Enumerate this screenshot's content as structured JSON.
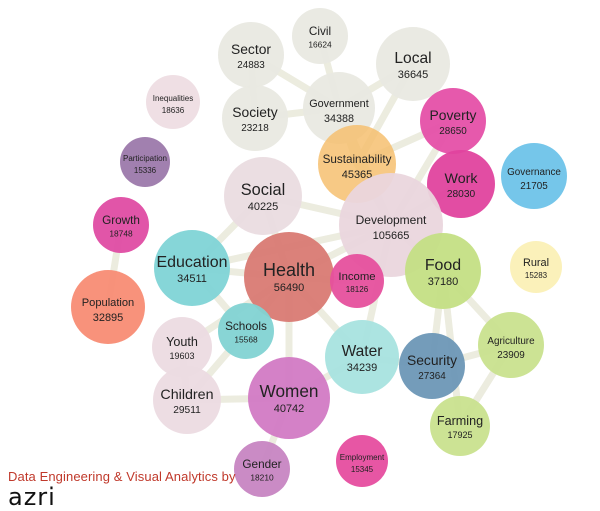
{
  "nodes": [
    {
      "id": "sector",
      "label": "Sector",
      "count": "24883",
      "color": "#e9e9e1"
    },
    {
      "id": "civil",
      "label": "Civil",
      "count": "16624",
      "color": "#e9e9e1"
    },
    {
      "id": "local",
      "label": "Local",
      "count": "36645",
      "color": "#e9e9e1"
    },
    {
      "id": "society",
      "label": "Society",
      "count": "23218",
      "color": "#e9e9e1"
    },
    {
      "id": "government",
      "label": "Government",
      "count": "34388",
      "color": "#e9e9e1"
    },
    {
      "id": "inequalities",
      "label": "Inequalities",
      "count": "18636",
      "color": "#eedde3"
    },
    {
      "id": "poverty",
      "label": "Poverty",
      "count": "28650",
      "color": "#e550a8"
    },
    {
      "id": "participation",
      "label": "Participation",
      "count": "15336",
      "color": "#9c79ab"
    },
    {
      "id": "sustainability",
      "label": "Sustainability",
      "count": "45365",
      "color": "#f6c070"
    },
    {
      "id": "work",
      "label": "Work",
      "count": "28030",
      "color": "#e0439e"
    },
    {
      "id": "governance",
      "label": "Governance",
      "count": "21705",
      "color": "#6ec3e9"
    },
    {
      "id": "social",
      "label": "Social",
      "count": "40225",
      "color": "#eadce0"
    },
    {
      "id": "development",
      "label": "Development",
      "count": "105665",
      "color": "#ead6dd"
    },
    {
      "id": "growth",
      "label": "Growth",
      "count": "18748",
      "color": "#df4ca3"
    },
    {
      "id": "education",
      "label": "Education",
      "count": "34511",
      "color": "#7fd4d6"
    },
    {
      "id": "health",
      "label": "Health",
      "count": "56490",
      "color": "#d97a73"
    },
    {
      "id": "food",
      "label": "Food",
      "count": "37180",
      "color": "#c4df84"
    },
    {
      "id": "rural",
      "label": "Rural",
      "count": "15283",
      "color": "#fbf0b6"
    },
    {
      "id": "income",
      "label": "Income",
      "count": "18126",
      "color": "#e6509d"
    },
    {
      "id": "population",
      "label": "Population",
      "count": "32895",
      "color": "#f88c74"
    },
    {
      "id": "schools",
      "label": "Schools",
      "count": "15568",
      "color": "#82d3d3"
    },
    {
      "id": "youth",
      "label": "Youth",
      "count": "19603",
      "color": "#ecdbe1"
    },
    {
      "id": "agriculture",
      "label": "Agriculture",
      "count": "23909",
      "color": "#c9e18e"
    },
    {
      "id": "water",
      "label": "Water",
      "count": "34239",
      "color": "#a8e3df"
    },
    {
      "id": "security",
      "label": "Security",
      "count": "27364",
      "color": "#6d97b6"
    },
    {
      "id": "children",
      "label": "Children",
      "count": "29511",
      "color": "#ecdbe1"
    },
    {
      "id": "women",
      "label": "Women",
      "count": "40742",
      "color": "#d27ac4"
    },
    {
      "id": "farming",
      "label": "Farming",
      "count": "17925",
      "color": "#c9e18e"
    },
    {
      "id": "gender",
      "label": "Gender",
      "count": "18210",
      "color": "#c785c2"
    },
    {
      "id": "employment",
      "label": "Employment",
      "count": "15345",
      "color": "#e64d9f"
    }
  ],
  "edges": [
    {
      "from": "sector",
      "to": "government"
    },
    {
      "from": "civil",
      "to": "government"
    },
    {
      "from": "sector",
      "to": "society"
    },
    {
      "from": "society",
      "to": "government"
    },
    {
      "from": "local",
      "to": "government"
    },
    {
      "from": "government",
      "to": "sustainability"
    },
    {
      "from": "government",
      "to": "development"
    },
    {
      "from": "local",
      "to": "sustainability"
    },
    {
      "from": "poverty",
      "to": "sustainability"
    },
    {
      "from": "poverty",
      "to": "development"
    },
    {
      "from": "work",
      "to": "development"
    },
    {
      "from": "sustainability",
      "to": "development"
    },
    {
      "from": "social",
      "to": "development"
    },
    {
      "from": "social",
      "to": "health"
    },
    {
      "from": "education",
      "to": "health"
    },
    {
      "from": "education",
      "to": "development"
    },
    {
      "from": "health",
      "to": "development"
    },
    {
      "from": "development",
      "to": "food"
    },
    {
      "from": "development",
      "to": "water"
    },
    {
      "from": "health",
      "to": "income"
    },
    {
      "from": "health",
      "to": "water"
    },
    {
      "from": "health",
      "to": "women"
    },
    {
      "from": "health",
      "to": "schools"
    },
    {
      "from": "health",
      "to": "youth"
    },
    {
      "from": "food",
      "to": "security"
    },
    {
      "from": "food",
      "to": "agriculture"
    },
    {
      "from": "food",
      "to": "farming"
    },
    {
      "from": "security",
      "to": "water"
    },
    {
      "from": "security",
      "to": "agriculture"
    },
    {
      "from": "agriculture",
      "to": "farming"
    },
    {
      "from": "growth",
      "to": "population"
    },
    {
      "from": "women",
      "to": "children"
    },
    {
      "from": "women",
      "to": "gender"
    },
    {
      "from": "women",
      "to": "water"
    },
    {
      "from": "children",
      "to": "youth"
    },
    {
      "from": "education",
      "to": "schools"
    },
    {
      "from": "education",
      "to": "social"
    },
    {
      "from": "schools",
      "to": "children"
    }
  ],
  "credit": "Data Engineering & Visual Analytics by",
  "brand": "azri"
}
